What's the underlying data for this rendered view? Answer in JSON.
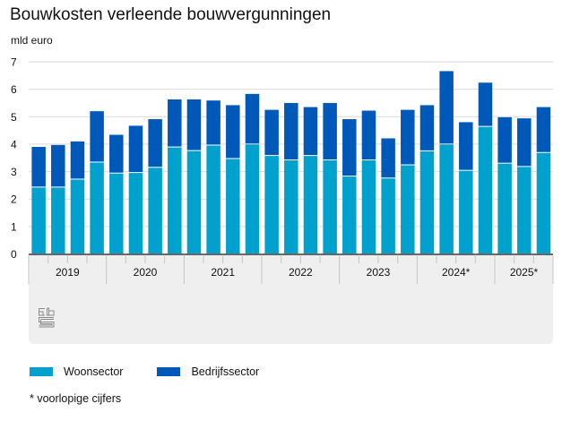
{
  "header": {
    "title": "Bouwkosten verleende bouwvergunningen",
    "unit": "mld euro"
  },
  "colors": {
    "woonsector": "#00A1CD",
    "bedrijfssector": "#0058B8",
    "panel": "#EFEFEF",
    "grid": "#D9D9D9",
    "axis": "#666666"
  },
  "legend": {
    "items": [
      {
        "label": "Woonsector",
        "color": "#00A1CD"
      },
      {
        "label": "Bedrijfssector",
        "color": "#0058B8"
      }
    ]
  },
  "footnote": "* voorlopige cijfers",
  "logo": {
    "icon": "cbs-logo-icon"
  },
  "chart_data": {
    "type": "bar",
    "stacked": true,
    "title": "Bouwkosten verleende bouwvergunningen",
    "ylabel": "mld euro",
    "xlabel": "",
    "ylim": [
      0,
      7
    ],
    "yticks": [
      0,
      1,
      2,
      3,
      4,
      5,
      6,
      7
    ],
    "grid": true,
    "legend_position": "bottom-left",
    "groups": [
      {
        "label": "2019",
        "count": 4
      },
      {
        "label": "2020",
        "count": 4
      },
      {
        "label": "2021",
        "count": 4
      },
      {
        "label": "2022",
        "count": 4
      },
      {
        "label": "2023",
        "count": 4
      },
      {
        "label": "2024*",
        "count": 4
      },
      {
        "label": "2025*",
        "count": 3
      }
    ],
    "categories": [
      "2019 Q1",
      "2019 Q2",
      "2019 Q3",
      "2019 Q4",
      "2020 Q1",
      "2020 Q2",
      "2020 Q3",
      "2020 Q4",
      "2021 Q1",
      "2021 Q2",
      "2021 Q3",
      "2021 Q4",
      "2022 Q1",
      "2022 Q2",
      "2022 Q3",
      "2022 Q4",
      "2023 Q1",
      "2023 Q2",
      "2023 Q3",
      "2023 Q4",
      "2024* Q1",
      "2024* Q2",
      "2024* Q3",
      "2024* Q4",
      "2025* Q1",
      "2025* Q2",
      "2025* Q3"
    ],
    "series": [
      {
        "name": "Woonsector",
        "values": [
          2.42,
          2.42,
          2.71,
          3.33,
          2.93,
          2.95,
          3.14,
          3.88,
          3.75,
          3.95,
          3.46,
          3.99,
          3.57,
          3.41,
          3.57,
          3.41,
          2.82,
          3.41,
          2.75,
          3.23,
          3.74,
          3.99,
          3.03,
          4.63,
          3.29,
          3.17,
          3.68
        ]
      },
      {
        "name": "Bedrijfssector",
        "values": [
          1.48,
          1.55,
          1.39,
          1.87,
          1.41,
          1.72,
          1.77,
          1.75,
          1.88,
          1.64,
          1.96,
          1.84,
          1.68,
          2.09,
          1.78,
          2.09,
          2.09,
          1.81,
          1.46,
          2.02,
          1.68,
          2.67,
          1.77,
          1.61,
          1.69,
          1.77,
          1.67
        ]
      }
    ],
    "totals": [
      3.9,
      3.97,
      4.1,
      5.2,
      4.34,
      4.67,
      4.91,
      5.63,
      5.63,
      5.59,
      5.42,
      5.83,
      5.25,
      5.5,
      5.35,
      5.5,
      4.91,
      5.22,
      4.21,
      5.25,
      5.42,
      6.66,
      4.8,
      6.24,
      4.98,
      4.94,
      5.35
    ]
  }
}
